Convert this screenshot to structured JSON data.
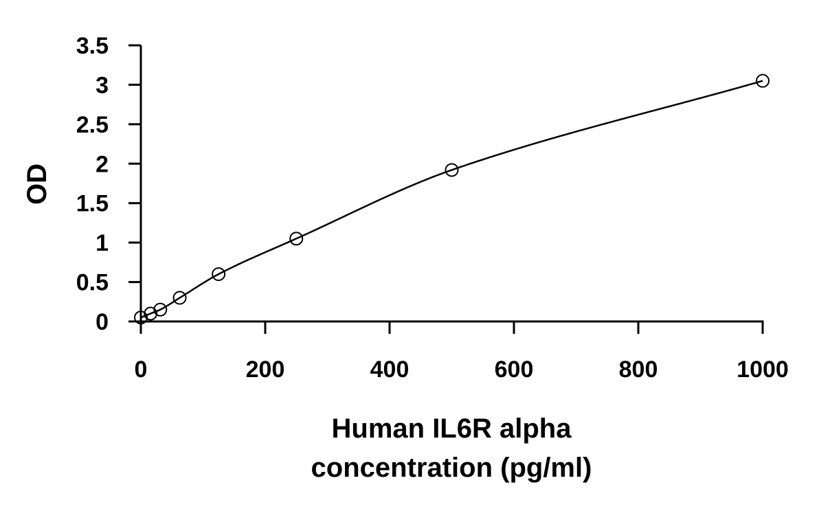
{
  "chart_data": {
    "type": "scatter",
    "title": "",
    "xlabel": [
      "Human IL6R alpha",
      "concentration (pg/ml)"
    ],
    "ylabel": "OD",
    "xlim": [
      0,
      1000
    ],
    "ylim": [
      0,
      3.5
    ],
    "x_ticks": [
      0,
      200,
      400,
      600,
      800,
      1000
    ],
    "y_ticks": [
      0,
      0.5,
      1,
      1.5,
      2,
      2.5,
      3,
      3.5
    ],
    "x_tick_labels": [
      "0",
      "200",
      "400",
      "600",
      "800",
      "1000"
    ],
    "y_tick_labels": [
      "0",
      "0.5",
      "1",
      "1.5",
      "2",
      "2.5",
      "3",
      "3.5"
    ],
    "grid": false,
    "legend": "none",
    "series": [
      {
        "marker": "open-circle",
        "line": "smooth-fit",
        "x": [
          0,
          15.6,
          31.25,
          62.5,
          125,
          250,
          500,
          1000
        ],
        "y": [
          0.05,
          0.1,
          0.15,
          0.3,
          0.6,
          1.05,
          1.92,
          3.05
        ]
      }
    ],
    "colors": {
      "axis": "#000000",
      "marker_stroke": "#000000",
      "marker_fill": "#ffffff",
      "curve": "#000000"
    }
  }
}
